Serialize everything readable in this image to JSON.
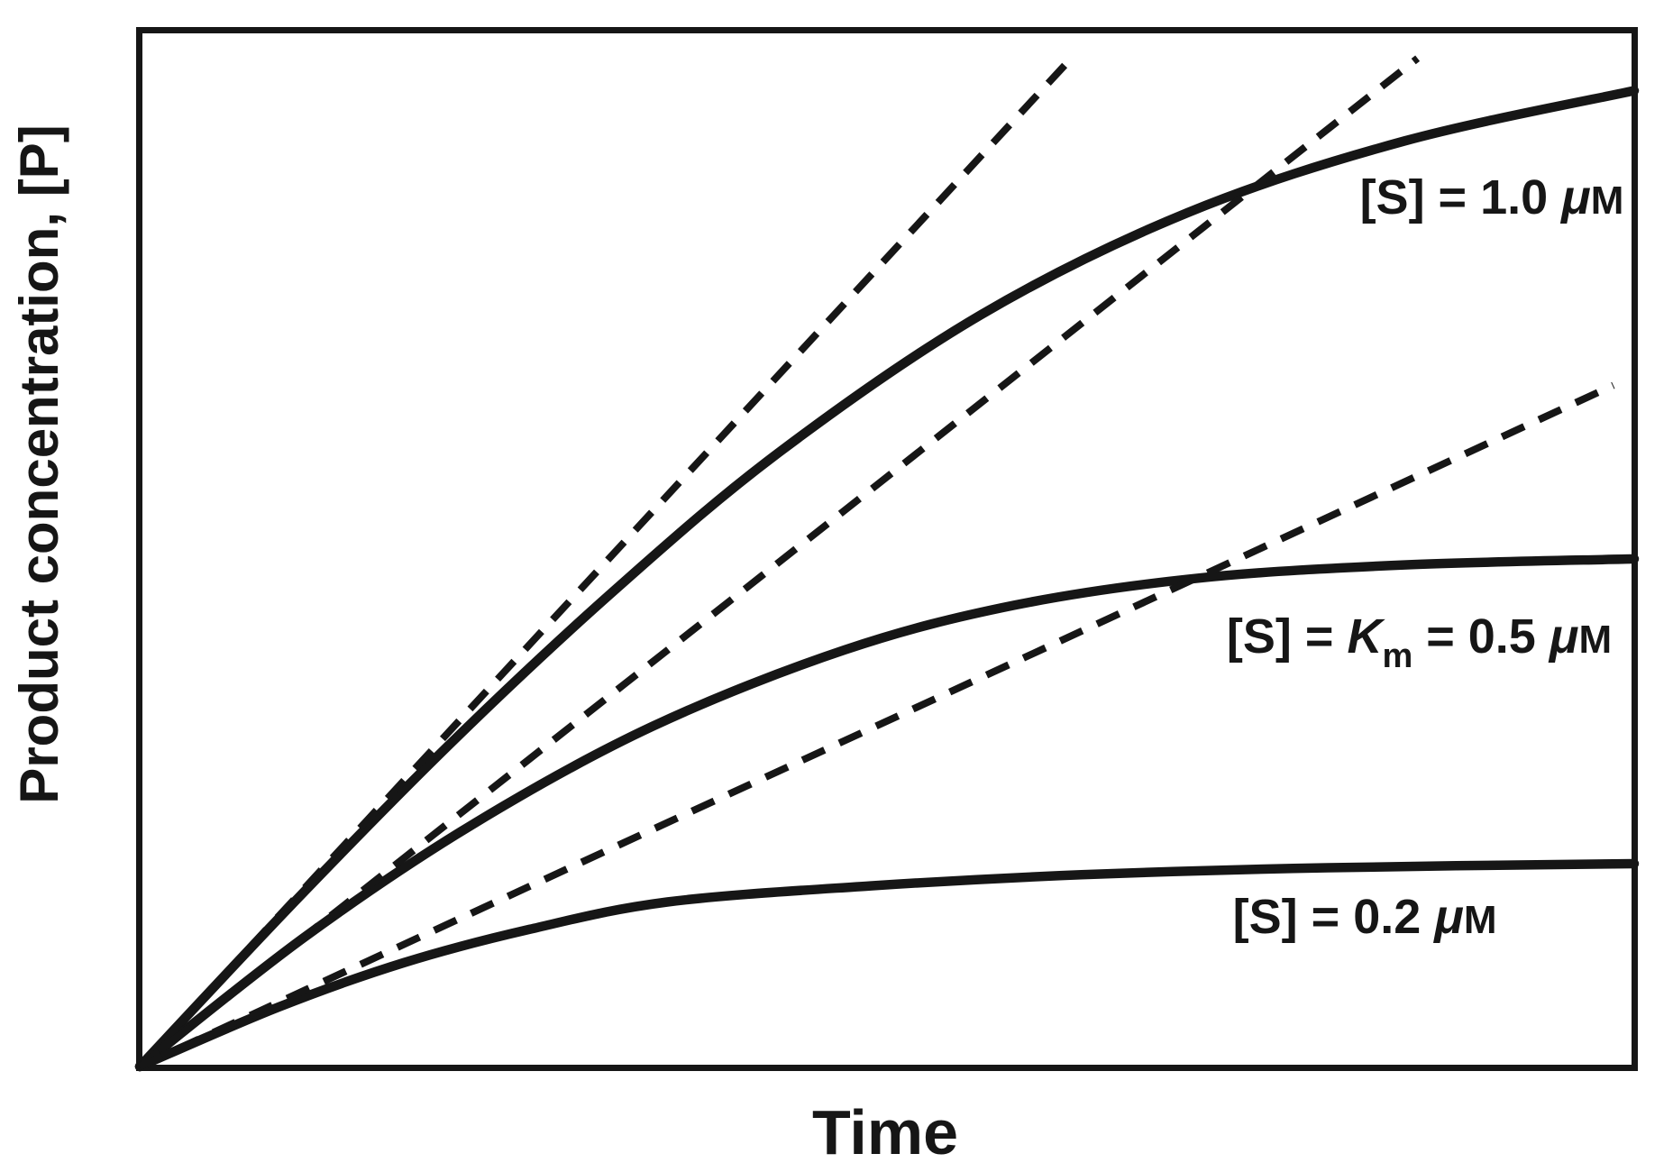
{
  "figure": {
    "background_color": "#ffffff",
    "ink_color": "#161616"
  },
  "chart_data": {
    "type": "line",
    "title": "",
    "xlabel": "Time",
    "ylabel": "Product concentration, [P]",
    "xlim": [
      0,
      10
    ],
    "ylim": [
      0,
      10.3
    ],
    "grid": false,
    "axis_ticks": "none",
    "legend": "none",
    "series": [
      {
        "id": "curve-s-1_0uM",
        "name": "[S] = 1.0 uM progress curve",
        "line_style": "solid",
        "x": [
          0,
          1.06,
          2.12,
          3.2,
          4.29,
          5.63,
          7.01,
          8.46,
          10
        ],
        "y": [
          0,
          1.67,
          3.26,
          4.75,
          6.1,
          7.45,
          8.46,
          9.17,
          9.67
        ]
      },
      {
        "id": "curve-s-0_5uM",
        "name": "[S] = Km = 0.5 uM progress curve",
        "line_style": "solid",
        "x": [
          0,
          1.11,
          2.24,
          3.43,
          4.72,
          5.85,
          7.09,
          8.46,
          10
        ],
        "y": [
          0,
          1.29,
          2.41,
          3.37,
          4.13,
          4.57,
          4.84,
          4.97,
          5.03
        ]
      },
      {
        "id": "curve-s-0_2uM",
        "name": "[S] = 0.2 uM progress curve",
        "line_style": "solid",
        "x": [
          0,
          0.93,
          1.77,
          2.61,
          3.53,
          4.89,
          6.3,
          7.95,
          10
        ],
        "y": [
          0,
          0.59,
          1.03,
          1.36,
          1.63,
          1.79,
          1.9,
          1.97,
          2.01
        ]
      },
      {
        "id": "tangent-s-1_0uM",
        "name": "initial-velocity tangent for [S] = 1.0 uM",
        "line_style": "dashed",
        "slope": 1.6,
        "x": [
          0,
          6.22
        ],
        "y": [
          0,
          9.97
        ]
      },
      {
        "id": "tangent-s-0_5uM",
        "name": "initial-velocity tangent for [S] = 0.5 uM",
        "line_style": "dashed",
        "slope": 1.17,
        "x": [
          0,
          8.55
        ],
        "y": [
          0,
          9.99
        ]
      },
      {
        "id": "tangent-s-0_2uM",
        "name": "initial-velocity tangent for [S] = 0.2 uM",
        "line_style": "dashed",
        "slope": 0.68,
        "x": [
          0,
          9.86
        ],
        "y": [
          0,
          6.75
        ]
      }
    ],
    "annotations": [
      {
        "id": "label-s-1_0uM",
        "x": 9.93,
        "y": 8.45,
        "anchor": "end",
        "parts": [
          {
            "text": "[S] = 1.0 "
          },
          {
            "text": "μ",
            "style": "italic"
          },
          {
            "text": "M",
            "style": "smallcaps"
          }
        ]
      },
      {
        "id": "label-s-km-0_5uM",
        "x": 9.85,
        "y": 4.1,
        "anchor": "end",
        "parts": [
          {
            "text": "[S] = "
          },
          {
            "text": "K",
            "style": "italic"
          },
          {
            "text": "m",
            "style": "sub"
          },
          {
            "text": " = 0.5 "
          },
          {
            "text": "μ",
            "style": "italic"
          },
          {
            "text": "M",
            "style": "smallcaps"
          }
        ]
      },
      {
        "id": "label-s-0_2uM",
        "x": 9.08,
        "y": 1.32,
        "anchor": "end",
        "parts": [
          {
            "text": "[S] = 0.2 "
          },
          {
            "text": "μ",
            "style": "italic"
          },
          {
            "text": "M",
            "style": "smallcaps"
          }
        ]
      }
    ]
  }
}
